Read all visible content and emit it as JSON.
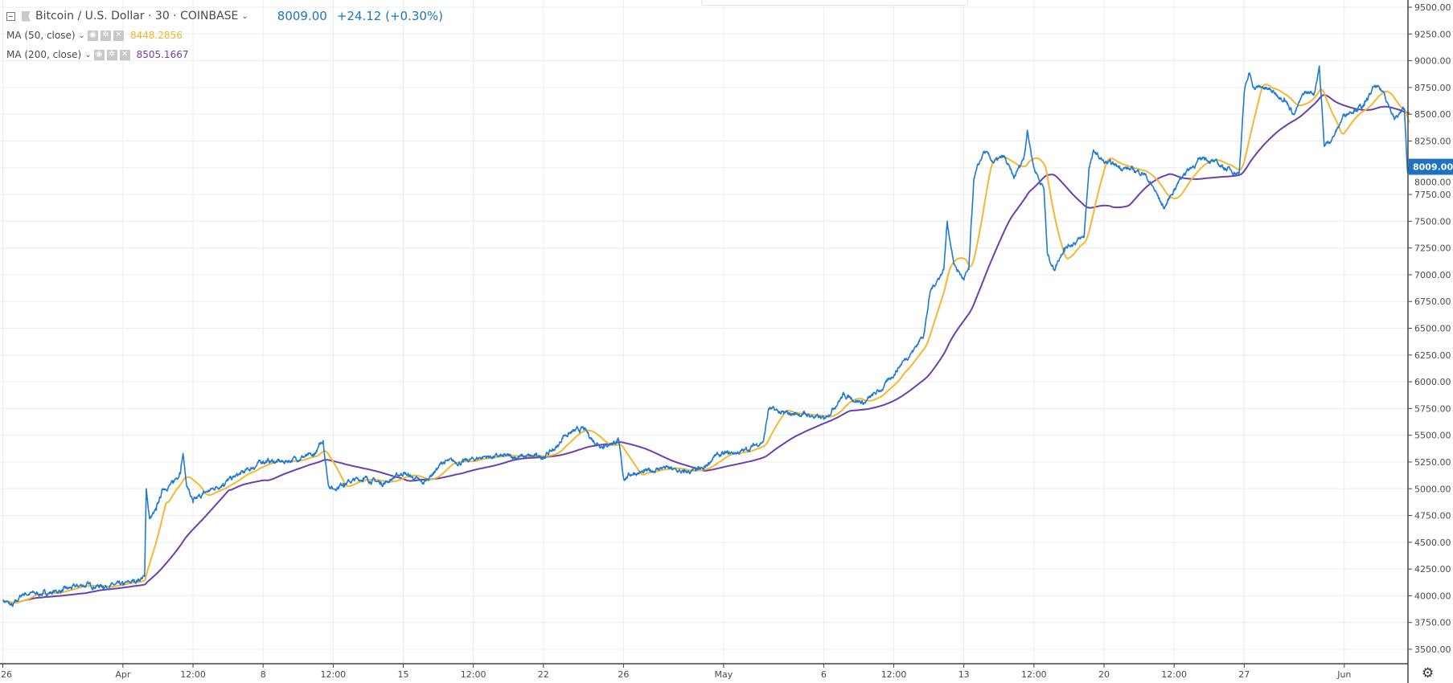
{
  "header": {
    "symbol": "Bitcoin / U.S. Dollar · 30 · COINBASE",
    "last_price": "8009.00",
    "change": "+24.12 (+0.30%)",
    "indicators": [
      {
        "label": "MA (50, close)",
        "value": "8448.2856",
        "color": "#f5b72e"
      },
      {
        "label": "MA (200, close)",
        "value": "8505.1667",
        "color": "#6a3fb0"
      }
    ]
  },
  "colors": {
    "price": "#1e7ad2",
    "ma50": "#f5b72e",
    "ma200": "#6a3fb0",
    "grid": "#e9edf1",
    "badge": "#1e73be"
  },
  "icons": [
    "collapse-icon",
    "symbol-flag-icon",
    "chevron-down-icon",
    "eye-icon",
    "gear-icon",
    "close-icon",
    "settings-gear-icon"
  ],
  "chart_data": {
    "type": "line",
    "title": "",
    "xlabel": "",
    "ylabel": "",
    "ylim": [
      3450,
      9550
    ],
    "grid": true,
    "yticks": [
      "9500.00",
      "9250.00",
      "9000.00",
      "8750.00",
      "8500.00",
      "8250.00",
      "8000.00",
      "7750.00",
      "7500.00",
      "7250.00",
      "7000.00",
      "6750.00",
      "6500.00",
      "6250.00",
      "6000.00",
      "5750.00",
      "5500.00",
      "5250.00",
      "5000.00",
      "4750.00",
      "4500.00",
      "4250.00",
      "4000.00",
      "3750.00",
      "3500.00"
    ],
    "xticks": [
      {
        "label": "26",
        "at": "Mar 26 00:00"
      },
      {
        "label": "Apr",
        "at": "Apr 1 00:00"
      },
      {
        "label": "12:00",
        "at": "Apr 4 12:00"
      },
      {
        "label": "8",
        "at": "Apr 8 00:00"
      },
      {
        "label": "12:00",
        "at": "Apr 11 12:00"
      },
      {
        "label": "15",
        "at": "Apr 15 00:00"
      },
      {
        "label": "12:00",
        "at": "Apr 18 12:00"
      },
      {
        "label": "22",
        "at": "Apr 22 00:00"
      },
      {
        "label": "26",
        "at": "Apr 26 00:00"
      },
      {
        "label": "May",
        "at": "May 1 00:00"
      },
      {
        "label": "6",
        "at": "May 6 00:00"
      },
      {
        "label": "12:00",
        "at": "May 9 12:00"
      },
      {
        "label": "13",
        "at": "May 13 00:00"
      },
      {
        "label": "12:00",
        "at": "May 16 12:00"
      },
      {
        "label": "20",
        "at": "May 20 00:00"
      },
      {
        "label": "12:00",
        "at": "May 23 12:00"
      },
      {
        "label": "27",
        "at": "May 27 00:00"
      },
      {
        "label": "Jun",
        "at": "Jun 1 00:00"
      }
    ],
    "last_value_label": "8009.00",
    "series": [
      {
        "key": "price",
        "points": [
          [
            "Mar 26 00:00",
            3960
          ],
          [
            "Mar 26 12:00",
            3900
          ],
          [
            "Mar 27 00:00",
            4020
          ],
          [
            "Mar 28 00:00",
            4020
          ],
          [
            "Mar 29 00:00",
            4050
          ],
          [
            "Mar 30 00:00",
            4100
          ],
          [
            "Mar 31 00:00",
            4090
          ],
          [
            "Apr 1 00:00",
            4100
          ],
          [
            "Apr 1 18:00",
            4150
          ],
          [
            "Apr 2 02:00",
            4180
          ],
          [
            "Apr 2 04:00",
            5000
          ],
          [
            "Apr 2 08:00",
            4720
          ],
          [
            "Apr 2 16:00",
            4800
          ],
          [
            "Apr 3 00:00",
            5000
          ],
          [
            "Apr 3 12:00",
            5050
          ],
          [
            "Apr 3 20:00",
            5150
          ],
          [
            "Apr 4 00:00",
            5330
          ],
          [
            "Apr 4 04:00",
            5050
          ],
          [
            "Apr 4 12:00",
            4870
          ],
          [
            "Apr 5 00:00",
            4950
          ],
          [
            "Apr 5 12:00",
            5000
          ],
          [
            "Apr 6 00:00",
            5050
          ],
          [
            "Apr 7 00:00",
            5150
          ],
          [
            "Apr 7 12:00",
            5200
          ],
          [
            "Apr 8 00:00",
            5260
          ],
          [
            "Apr 9 00:00",
            5250
          ],
          [
            "Apr 10 00:00",
            5300
          ],
          [
            "Apr 10 12:00",
            5300
          ],
          [
            "Apr 11 00:00",
            5450
          ],
          [
            "Apr 11 06:00",
            5050
          ],
          [
            "Apr 11 12:00",
            5000
          ],
          [
            "Apr 12 00:00",
            5050
          ],
          [
            "Apr 13 00:00",
            5100
          ],
          [
            "Apr 14 00:00",
            5050
          ],
          [
            "Apr 15 00:00",
            5150
          ],
          [
            "Apr 16 00:00",
            5050
          ],
          [
            "Apr 16 12:00",
            5150
          ],
          [
            "Apr 17 00:00",
            5250
          ],
          [
            "Apr 18 00:00",
            5250
          ],
          [
            "Apr 19 00:00",
            5300
          ],
          [
            "Apr 20 00:00",
            5300
          ],
          [
            "Apr 21 00:00",
            5300
          ],
          [
            "Apr 22 00:00",
            5300
          ],
          [
            "Apr 22 18:00",
            5400
          ],
          [
            "Apr 23 00:00",
            5500
          ],
          [
            "Apr 24 00:00",
            5560
          ],
          [
            "Apr 24 12:00",
            5450
          ],
          [
            "Apr 25 00:00",
            5400
          ],
          [
            "Apr 25 18:00",
            5450
          ],
          [
            "Apr 26 00:00",
            5100
          ],
          [
            "Apr 26 12:00",
            5150
          ],
          [
            "Apr 27 00:00",
            5150
          ],
          [
            "Apr 28 00:00",
            5200
          ],
          [
            "Apr 29 00:00",
            5150
          ],
          [
            "Apr 30 00:00",
            5180
          ],
          [
            "Apr 30 12:00",
            5300
          ],
          [
            "May 1 00:00",
            5320
          ],
          [
            "May 2 00:00",
            5350
          ],
          [
            "May 3 00:00",
            5450
          ],
          [
            "May 3 06:00",
            5750
          ],
          [
            "May 4 00:00",
            5700
          ],
          [
            "May 5 00:00",
            5700
          ],
          [
            "May 6 00:00",
            5650
          ],
          [
            "May 7 00:00",
            5880
          ],
          [
            "May 8 00:00",
            5800
          ],
          [
            "May 9 00:00",
            5950
          ],
          [
            "May 10 00:00",
            6200
          ],
          [
            "May 10 12:00",
            6300
          ],
          [
            "May 11 00:00",
            6450
          ],
          [
            "May 11 08:00",
            6850
          ],
          [
            "May 12 00:00",
            7050
          ],
          [
            "May 12 04:00",
            7500
          ],
          [
            "May 12 12:00",
            7100
          ],
          [
            "May 13 00:00",
            6950
          ],
          [
            "May 13 06:00",
            7050
          ],
          [
            "May 13 12:00",
            7900
          ],
          [
            "May 14 00:00",
            8150
          ],
          [
            "May 14 12:00",
            8050
          ],
          [
            "May 15 00:00",
            8100
          ],
          [
            "May 15 12:00",
            7900
          ],
          [
            "May 16 00:00",
            8100
          ],
          [
            "May 16 04:00",
            8350
          ],
          [
            "May 16 12:00",
            8000
          ],
          [
            "May 17 00:00",
            7800
          ],
          [
            "May 17 04:00",
            7200
          ],
          [
            "May 17 12:00",
            7050
          ],
          [
            "May 18 00:00",
            7250
          ],
          [
            "May 18 12:00",
            7300
          ],
          [
            "May 19 00:00",
            7350
          ],
          [
            "May 19 06:00",
            8000
          ],
          [
            "May 19 12:00",
            8150
          ],
          [
            "May 20 00:00",
            8050
          ],
          [
            "May 21 00:00",
            8000
          ],
          [
            "May 22 00:00",
            7950
          ],
          [
            "May 22 12:00",
            7800
          ],
          [
            "May 23 00:00",
            7620
          ],
          [
            "May 23 12:00",
            7800
          ],
          [
            "May 24 00:00",
            7950
          ],
          [
            "May 25 00:00",
            8100
          ],
          [
            "May 26 00:00",
            8000
          ],
          [
            "May 26 18:00",
            7950
          ],
          [
            "May 27 00:00",
            8700
          ],
          [
            "May 27 06:00",
            8880
          ],
          [
            "May 27 12:00",
            8750
          ],
          [
            "May 28 00:00",
            8750
          ],
          [
            "May 28 12:00",
            8700
          ],
          [
            "May 29 00:00",
            8650
          ],
          [
            "May 29 12:00",
            8500
          ],
          [
            "May 30 00:00",
            8700
          ],
          [
            "May 30 12:00",
            8700
          ],
          [
            "May 30 18:00",
            8950
          ],
          [
            "May 31 00:00",
            8200
          ],
          [
            "May 31 12:00",
            8300
          ],
          [
            "Jun 1 00:00",
            8500
          ],
          [
            "Jun 1 12:00",
            8550
          ],
          [
            "Jun 2 00:00",
            8580
          ],
          [
            "Jun 2 12:00",
            8760
          ],
          [
            "Jun 3 00:00",
            8700
          ],
          [
            "Jun 3 12:00",
            8450
          ],
          [
            "Jun 4 00:00",
            8550
          ],
          [
            "Jun 4 04:00",
            7950
          ],
          [
            "Jun 4 06:00",
            8009
          ]
        ]
      },
      {
        "key": "ma50",
        "window": 50
      },
      {
        "key": "ma200",
        "window": 200
      }
    ]
  }
}
